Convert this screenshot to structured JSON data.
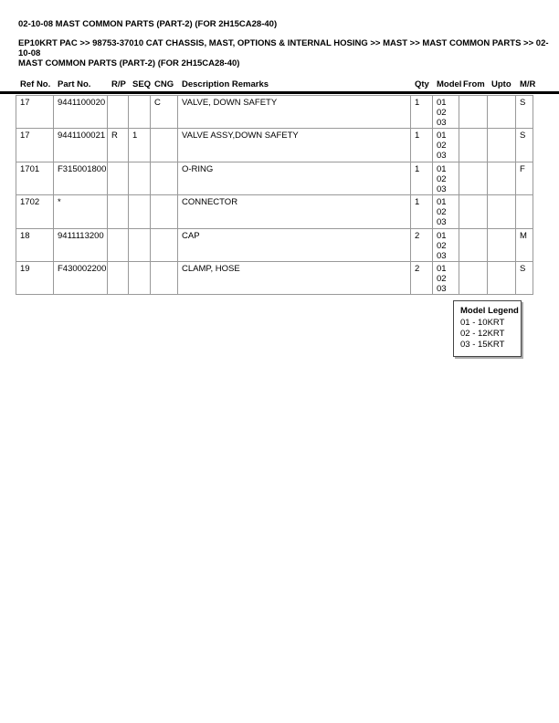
{
  "header": {
    "title": "02-10-08 MAST COMMON PARTS (PART-2) (FOR 2H15CA28-40)",
    "breadcrumb": [
      "EP10KRT PAC >> 98753-37010 CAT CHASSIS, MAST, OPTIONS & INTERNAL HOSING >> MAST >> MAST COMMON PARTS >> 02-10-08",
      "MAST COMMON PARTS (PART-2) (FOR 2H15CA28-40)"
    ]
  },
  "table": {
    "columns": [
      {
        "key": "ref_no",
        "label": "Ref No."
      },
      {
        "key": "part_no",
        "label": "Part No."
      },
      {
        "key": "rp",
        "label": "R/P"
      },
      {
        "key": "seq",
        "label": "SEQ"
      },
      {
        "key": "cng",
        "label": "CNG"
      },
      {
        "key": "description",
        "label": "Description Remarks"
      },
      {
        "key": "qty",
        "label": "Qty"
      },
      {
        "key": "model",
        "label": "Model"
      },
      {
        "key": "from",
        "label": "From"
      },
      {
        "key": "upto",
        "label": "Upto"
      },
      {
        "key": "mr",
        "label": "M/R"
      }
    ],
    "rows": [
      {
        "ref_no": "17",
        "part_no": "9441100020",
        "rp": "",
        "seq": "",
        "cng": "C",
        "description": "VALVE, DOWN SAFETY",
        "qty": "1",
        "model": [
          "01",
          "02",
          "03"
        ],
        "from": "",
        "upto": "",
        "mr": "S"
      },
      {
        "ref_no": "17",
        "part_no": "9441100021",
        "rp": "R",
        "seq": "1",
        "cng": "",
        "description": "VALVE ASSY,DOWN SAFETY",
        "qty": "1",
        "model": [
          "01",
          "02",
          "03"
        ],
        "from": "",
        "upto": "",
        "mr": "S"
      },
      {
        "ref_no": "1701",
        "part_no": "F315001800",
        "rp": "",
        "seq": "",
        "cng": "",
        "description": "O-RING",
        "qty": "1",
        "model": [
          "01",
          "02",
          "03"
        ],
        "from": "",
        "upto": "",
        "mr": "F"
      },
      {
        "ref_no": "1702",
        "part_no": "*",
        "rp": "",
        "seq": "",
        "cng": "",
        "description": "CONNECTOR",
        "qty": "1",
        "model": [
          "01",
          "02",
          "03"
        ],
        "from": "",
        "upto": "",
        "mr": ""
      },
      {
        "ref_no": "18",
        "part_no": "9411113200",
        "rp": "",
        "seq": "",
        "cng": "",
        "description": "CAP",
        "qty": "2",
        "model": [
          "01",
          "02",
          "03"
        ],
        "from": "",
        "upto": "",
        "mr": "M"
      },
      {
        "ref_no": "19",
        "part_no": "F430002200",
        "rp": "",
        "seq": "",
        "cng": "",
        "description": "CLAMP, HOSE",
        "qty": "2",
        "model": [
          "01",
          "02",
          "03"
        ],
        "from": "",
        "upto": "",
        "mr": "S"
      }
    ]
  },
  "legend": {
    "title": "Model Legend",
    "entries": [
      "01 - 10KRT",
      "02 - 12KRT",
      "03 - 15KRT"
    ]
  }
}
